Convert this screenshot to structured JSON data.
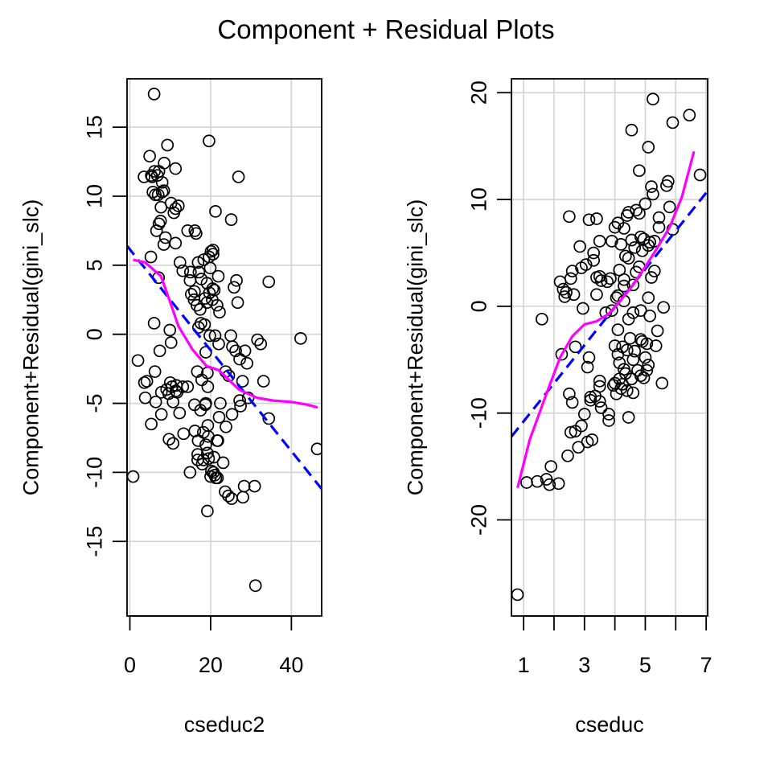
{
  "title": "Component + Residual Plots",
  "colors": {
    "points": "#000000",
    "linear_fit": "#0000FF",
    "smooth": "#FF00FF",
    "grid": "#D3D3D3",
    "frame": "#000000"
  },
  "chart_data": [
    {
      "type": "scatter",
      "xlabel": "cseduc2",
      "ylabel": "Component+Residual(gini_slc)",
      "xlim": [
        -0.7,
        47.5
      ],
      "ylim": [
        -20.4,
        18.5
      ],
      "x_ticks": [
        0,
        20,
        40
      ],
      "x_tick_labels": [
        "0",
        "20",
        "40"
      ],
      "y_ticks": [
        -15,
        -10,
        -5,
        0,
        5,
        10,
        15
      ],
      "y_tick_labels": [
        "-15",
        "-10",
        "-5",
        "0",
        "5",
        "10",
        "15"
      ],
      "grid": true,
      "linear_fit": {
        "x": [
          -0.7,
          47.5
        ],
        "y": [
          6.4,
          -11.2
        ]
      },
      "smooth": {
        "x": [
          0.8,
          3.8,
          7.7,
          9.3,
          12.0,
          15.5,
          19.0,
          22.0,
          27.0,
          31.5,
          35.5,
          40.0,
          44.0,
          46.5
        ],
        "y": [
          5.4,
          5.2,
          4.2,
          2.9,
          0.6,
          -1.1,
          -2.3,
          -2.6,
          -4.0,
          -4.6,
          -4.8,
          -4.9,
          -5.1,
          -5.3
        ]
      },
      "points": [
        [
          0.8,
          -10.3
        ],
        [
          2.0,
          -1.9
        ],
        [
          3.5,
          11.4
        ],
        [
          3.6,
          -3.5
        ],
        [
          3.8,
          -4.6
        ],
        [
          4.2,
          -3.4
        ],
        [
          4.9,
          12.9
        ],
        [
          5.2,
          5.6
        ],
        [
          5.3,
          11.5
        ],
        [
          5.3,
          -6.5
        ],
        [
          5.5,
          11.4
        ],
        [
          5.7,
          10.3
        ],
        [
          6.0,
          17.4
        ],
        [
          6.0,
          0.8
        ],
        [
          6.1,
          11.8
        ],
        [
          6.2,
          -2.7
        ],
        [
          6.3,
          10.1
        ],
        [
          6.4,
          -4.9
        ],
        [
          6.6,
          7.5
        ],
        [
          6.8,
          11.5
        ],
        [
          7.0,
          10.1
        ],
        [
          7.1,
          4.1
        ],
        [
          7.2,
          11.8
        ],
        [
          7.2,
          8.0
        ],
        [
          7.4,
          -1.2
        ],
        [
          7.6,
          8.2
        ],
        [
          7.7,
          9.2
        ],
        [
          7.8,
          -4.2
        ],
        [
          7.8,
          -5.8
        ],
        [
          8.0,
          11.0
        ],
        [
          8.0,
          10.3
        ],
        [
          8.4,
          10.4
        ],
        [
          8.4,
          6.5
        ],
        [
          8.5,
          12.4
        ],
        [
          8.8,
          7.0
        ],
        [
          9.1,
          -4.0
        ],
        [
          9.3,
          13.7
        ],
        [
          9.6,
          -4.3
        ],
        [
          9.7,
          -7.6
        ],
        [
          9.9,
          0.3
        ],
        [
          10.0,
          -3.5
        ],
        [
          10.2,
          -0.6
        ],
        [
          10.2,
          9.5
        ],
        [
          10.4,
          -3.8
        ],
        [
          10.7,
          -4.9
        ],
        [
          10.7,
          -7.9
        ],
        [
          10.9,
          8.8
        ],
        [
          11.3,
          12.0
        ],
        [
          11.3,
          9.1
        ],
        [
          11.3,
          6.6
        ],
        [
          11.4,
          -4.1
        ],
        [
          11.5,
          -3.7
        ],
        [
          11.7,
          -4.2
        ],
        [
          12.0,
          9.3
        ],
        [
          12.3,
          -5.7
        ],
        [
          12.4,
          5.2
        ],
        [
          13.1,
          -3.8
        ],
        [
          13.1,
          4.6
        ],
        [
          13.3,
          -7.2
        ],
        [
          14.3,
          7.5
        ],
        [
          14.3,
          -3.8
        ],
        [
          14.9,
          -10.0
        ],
        [
          14.9,
          3.9
        ],
        [
          15.0,
          4.5
        ],
        [
          15.2,
          2.9
        ],
        [
          15.9,
          2.5
        ],
        [
          16.0,
          3.1
        ],
        [
          16.0,
          -5.1
        ],
        [
          16.1,
          7.5
        ],
        [
          16.1,
          -7.0
        ],
        [
          16.4,
          7.3
        ],
        [
          16.6,
          2.1
        ],
        [
          16.7,
          -2.7
        ],
        [
          16.8,
          -8.7
        ],
        [
          16.8,
          -9.1
        ],
        [
          16.9,
          -7.7
        ],
        [
          16.9,
          5.2
        ],
        [
          17.0,
          0.5
        ],
        [
          17.1,
          4.5
        ],
        [
          17.4,
          1.8
        ],
        [
          17.5,
          -5.5
        ],
        [
          17.6,
          0.8
        ],
        [
          17.7,
          4.0
        ],
        [
          17.8,
          -3.3
        ],
        [
          17.9,
          -9.4
        ],
        [
          18.2,
          -7.1
        ],
        [
          18.2,
          -9.1
        ],
        [
          18.3,
          5.4
        ],
        [
          18.5,
          0.7
        ],
        [
          18.6,
          2.6
        ],
        [
          18.7,
          -5.1
        ],
        [
          18.8,
          -8.0
        ],
        [
          18.8,
          -1.3
        ],
        [
          18.8,
          -5.0
        ],
        [
          19.1,
          3.7
        ],
        [
          19.1,
          2.3
        ],
        [
          19.2,
          -2.8
        ],
        [
          19.2,
          -8.6
        ],
        [
          19.2,
          -12.8
        ],
        [
          19.3,
          -3.8
        ],
        [
          19.3,
          -6.6
        ],
        [
          19.4,
          -7.4
        ],
        [
          19.5,
          -9.0
        ],
        [
          19.6,
          14.0
        ],
        [
          19.6,
          5.6
        ],
        [
          19.7,
          3.0
        ],
        [
          19.8,
          -0.1
        ],
        [
          19.9,
          4.8
        ],
        [
          20.0,
          -10.3
        ],
        [
          20.1,
          6.0
        ],
        [
          20.2,
          -9.9
        ],
        [
          20.4,
          2.5
        ],
        [
          20.5,
          3.3
        ],
        [
          20.6,
          5.8
        ],
        [
          20.6,
          6.1
        ],
        [
          20.7,
          -10.0
        ],
        [
          20.8,
          -8.9
        ],
        [
          20.9,
          3.2
        ],
        [
          21.0,
          -10.2
        ],
        [
          21.1,
          -0.1
        ],
        [
          21.2,
          8.9
        ],
        [
          21.3,
          -10.4
        ],
        [
          21.6,
          -7.7
        ],
        [
          21.6,
          2.1
        ],
        [
          21.7,
          -10.4
        ],
        [
          21.8,
          -7.7
        ],
        [
          21.9,
          4.2
        ],
        [
          22.0,
          -0.7
        ],
        [
          22.1,
          -6.0
        ],
        [
          22.2,
          1.6
        ],
        [
          22.4,
          -5.0
        ],
        [
          23.1,
          -9.3
        ],
        [
          23.6,
          -11.4
        ],
        [
          23.7,
          -2.7
        ],
        [
          23.8,
          -6.7
        ],
        [
          24.4,
          -11.7
        ],
        [
          24.5,
          -3.0
        ],
        [
          25.0,
          -0.1
        ],
        [
          25.1,
          8.3
        ],
        [
          25.2,
          -11.9
        ],
        [
          25.3,
          -5.8
        ],
        [
          25.4,
          -0.9
        ],
        [
          25.8,
          3.4
        ],
        [
          26.2,
          -1.2
        ],
        [
          26.4,
          3.9
        ],
        [
          26.7,
          2.3
        ],
        [
          26.9,
          11.4
        ],
        [
          27.2,
          -1.8
        ],
        [
          27.2,
          -4.8
        ],
        [
          27.4,
          -5.2
        ],
        [
          27.9,
          -3.4
        ],
        [
          28.0,
          -11.8
        ],
        [
          28.3,
          -11.0
        ],
        [
          28.5,
          -1.2
        ],
        [
          29.0,
          -2.1
        ],
        [
          29.3,
          -4.6
        ],
        [
          30.9,
          -11.0
        ],
        [
          31.1,
          -18.2
        ],
        [
          31.6,
          -0.4
        ],
        [
          32.4,
          -0.7
        ],
        [
          33.1,
          -3.4
        ],
        [
          34.4,
          3.8
        ],
        [
          34.4,
          -6.1
        ],
        [
          42.3,
          -0.3
        ],
        [
          46.4,
          -8.3
        ]
      ]
    },
    {
      "type": "scatter",
      "xlabel": "cseduc",
      "ylabel": "Component+Residual(gini_slc)",
      "xlim": [
        0.6,
        7.05
      ],
      "ylim": [
        -29.0,
        21.3
      ],
      "x_ticks": [
        1,
        2,
        3,
        4,
        5,
        6,
        7
      ],
      "x_tick_labels": [
        "1",
        "",
        "3",
        "",
        "5",
        "",
        "7"
      ],
      "y_ticks": [
        -20,
        -10,
        0,
        10,
        20
      ],
      "y_tick_labels": [
        "-20",
        "-10",
        "0",
        "10",
        "20"
      ],
      "grid": true,
      "linear_fit": {
        "x": [
          0.6,
          7.05
        ],
        "y": [
          -12.2,
          10.8
        ]
      },
      "smooth": {
        "x": [
          0.8,
          1.2,
          1.8,
          2.2,
          2.6,
          3.0,
          3.4,
          3.8,
          4.2,
          4.6,
          5.0,
          5.4,
          5.8,
          6.2,
          6.6
        ],
        "y": [
          -17.0,
          -12.5,
          -7.8,
          -4.8,
          -2.8,
          -1.7,
          -1.4,
          -0.7,
          0.6,
          2.0,
          3.7,
          5.5,
          7.4,
          10.2,
          14.5
        ]
      },
      "points": [
        [
          0.8,
          -27.0
        ],
        [
          1.1,
          -16.5
        ],
        [
          1.45,
          -16.4
        ],
        [
          1.6,
          -1.2
        ],
        [
          1.75,
          -16.2
        ],
        [
          1.85,
          -16.7
        ],
        [
          1.9,
          -15.0
        ],
        [
          2.15,
          -16.6
        ],
        [
          2.2,
          2.3
        ],
        [
          2.25,
          -4.5
        ],
        [
          2.3,
          1.6
        ],
        [
          2.35,
          0.9
        ],
        [
          2.4,
          1.3
        ],
        [
          2.45,
          -14.0
        ],
        [
          2.5,
          8.4
        ],
        [
          2.5,
          -8.2
        ],
        [
          2.55,
          -11.8
        ],
        [
          2.55,
          2.6
        ],
        [
          2.6,
          3.3
        ],
        [
          2.6,
          -9.0
        ],
        [
          2.65,
          1.1
        ],
        [
          2.7,
          -11.7
        ],
        [
          2.7,
          -3.8
        ],
        [
          2.8,
          -13.2
        ],
        [
          2.85,
          5.6
        ],
        [
          2.9,
          3.6
        ],
        [
          2.9,
          -11.2
        ],
        [
          2.95,
          -0.2
        ],
        [
          3.0,
          -10.1
        ],
        [
          3.05,
          3.9
        ],
        [
          3.1,
          -5.7
        ],
        [
          3.1,
          -12.7
        ],
        [
          3.15,
          8.1
        ],
        [
          3.15,
          -4.8
        ],
        [
          3.2,
          -8.5
        ],
        [
          3.2,
          -8.8
        ],
        [
          3.25,
          -12.5
        ],
        [
          3.3,
          4.3
        ],
        [
          3.3,
          5.0
        ],
        [
          3.35,
          -8.4
        ],
        [
          3.4,
          8.2
        ],
        [
          3.4,
          1.1
        ],
        [
          3.4,
          2.7
        ],
        [
          3.5,
          6.1
        ],
        [
          3.5,
          2.8
        ],
        [
          3.5,
          -7.0
        ],
        [
          3.5,
          -7.5
        ],
        [
          3.5,
          -8.9
        ],
        [
          3.55,
          -9.5
        ],
        [
          3.55,
          2.4
        ],
        [
          3.7,
          -0.6
        ],
        [
          3.75,
          2.3
        ],
        [
          3.8,
          -10.1
        ],
        [
          3.8,
          -10.7
        ],
        [
          3.85,
          2.6
        ],
        [
          3.9,
          -0.4
        ],
        [
          3.9,
          6.1
        ],
        [
          3.95,
          -7.4
        ],
        [
          4.0,
          -7.2
        ],
        [
          4.0,
          -3.7
        ],
        [
          4.0,
          7.4
        ],
        [
          4.05,
          -8.2
        ],
        [
          4.05,
          0.8
        ],
        [
          4.1,
          7.8
        ],
        [
          4.1,
          1.0
        ],
        [
          4.1,
          -2.2
        ],
        [
          4.1,
          -4.5
        ],
        [
          4.15,
          -5.3
        ],
        [
          4.15,
          -6.8
        ],
        [
          4.15,
          3.4
        ],
        [
          4.2,
          5.8
        ],
        [
          4.2,
          -7.7
        ],
        [
          4.25,
          -3.8
        ],
        [
          4.25,
          -7.3
        ],
        [
          4.3,
          7.3
        ],
        [
          4.3,
          2.5
        ],
        [
          4.3,
          1.9
        ],
        [
          4.3,
          0.5
        ],
        [
          4.3,
          -5.9
        ],
        [
          4.35,
          4.7
        ],
        [
          4.35,
          -6.3
        ],
        [
          4.4,
          8.5
        ],
        [
          4.4,
          -4.1
        ],
        [
          4.4,
          -7.9
        ],
        [
          4.45,
          8.8
        ],
        [
          4.45,
          4.5
        ],
        [
          4.45,
          -1.2
        ],
        [
          4.45,
          -10.4
        ],
        [
          4.5,
          -3.0
        ],
        [
          4.55,
          16.5
        ],
        [
          4.55,
          6.2
        ],
        [
          4.55,
          -6.8
        ],
        [
          4.6,
          2.0
        ],
        [
          4.6,
          -0.6
        ],
        [
          4.6,
          -5.0
        ],
        [
          4.6,
          -8.1
        ],
        [
          4.65,
          5.5
        ],
        [
          4.65,
          -4.2
        ],
        [
          4.7,
          9.0
        ],
        [
          4.7,
          3.2
        ],
        [
          4.75,
          -6.0
        ],
        [
          4.8,
          12.7
        ],
        [
          4.8,
          8.7
        ],
        [
          4.8,
          3.7
        ],
        [
          4.85,
          6.5
        ],
        [
          4.85,
          -0.4
        ],
        [
          4.85,
          -3.1
        ],
        [
          4.85,
          -6.5
        ],
        [
          4.9,
          5.2
        ],
        [
          4.9,
          -3.3
        ],
        [
          4.95,
          6.3
        ],
        [
          4.95,
          -6.7
        ],
        [
          5.0,
          9.6
        ],
        [
          5.0,
          -4.8
        ],
        [
          5.05,
          -6.0
        ],
        [
          5.05,
          -3.5
        ],
        [
          5.1,
          14.9
        ],
        [
          5.1,
          5.7
        ],
        [
          5.1,
          0.8
        ],
        [
          5.1,
          -5.5
        ],
        [
          5.15,
          6.0
        ],
        [
          5.15,
          -0.9
        ],
        [
          5.2,
          11.2
        ],
        [
          5.2,
          2.7
        ],
        [
          5.25,
          19.4
        ],
        [
          5.25,
          10.5
        ],
        [
          5.3,
          6.1
        ],
        [
          5.3,
          3.3
        ],
        [
          5.35,
          -3.7
        ],
        [
          5.4,
          -2.3
        ],
        [
          5.45,
          8.3
        ],
        [
          5.45,
          7.4
        ],
        [
          5.55,
          -7.2
        ],
        [
          5.6,
          -0.1
        ],
        [
          5.7,
          11.3
        ],
        [
          5.75,
          11.7
        ],
        [
          5.8,
          9.3
        ],
        [
          5.9,
          7.2
        ],
        [
          5.9,
          17.2
        ],
        [
          6.45,
          17.9
        ],
        [
          6.8,
          12.3
        ]
      ]
    }
  ]
}
